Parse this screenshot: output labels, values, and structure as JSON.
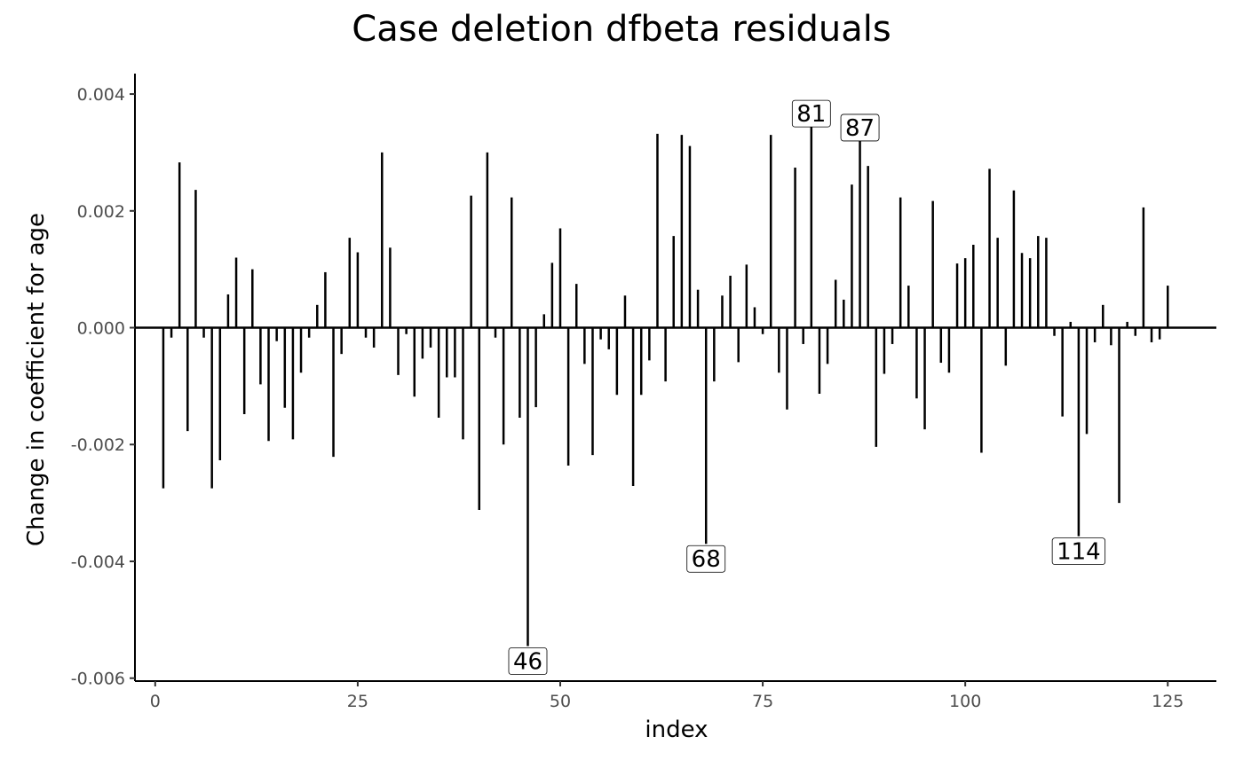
{
  "chart_data": {
    "type": "bar",
    "title": "Case deletion dfbeta residuals",
    "xlabel": "index",
    "ylabel": "Change in coefficient for age",
    "xlim": [
      -2.5,
      131
    ],
    "ylim": [
      -0.00605,
      0.00435
    ],
    "x_ticks": [
      0,
      25,
      50,
      75,
      100,
      125
    ],
    "y_ticks": [
      -0.006,
      -0.004,
      -0.002,
      0.0,
      0.002,
      0.004
    ],
    "x_tick_labels": [
      "0",
      "25",
      "50",
      "75",
      "100",
      "125"
    ],
    "y_tick_labels": [
      "-0.006",
      "-0.004",
      "-0.002",
      "0.000",
      "0.002",
      "0.004"
    ],
    "labeled_points": [
      {
        "index": 46,
        "label": "46"
      },
      {
        "index": 68,
        "label": "68"
      },
      {
        "index": 81,
        "label": "81"
      },
      {
        "index": 87,
        "label": "87"
      },
      {
        "index": 114,
        "label": "114"
      }
    ],
    "points": [
      {
        "x": 1,
        "y": -0.00275
      },
      {
        "x": 2,
        "y": -0.00017
      },
      {
        "x": 3,
        "y": 0.00283
      },
      {
        "x": 4,
        "y": -0.00177
      },
      {
        "x": 5,
        "y": 0.00236
      },
      {
        "x": 6,
        "y": -0.00017
      },
      {
        "x": 7,
        "y": -0.00275
      },
      {
        "x": 8,
        "y": -0.00227
      },
      {
        "x": 9,
        "y": 0.00057
      },
      {
        "x": 10,
        "y": 0.0012
      },
      {
        "x": 11,
        "y": -0.00148
      },
      {
        "x": 12,
        "y": 0.001
      },
      {
        "x": 13,
        "y": -0.00097
      },
      {
        "x": 14,
        "y": -0.00194
      },
      {
        "x": 15,
        "y": -0.00023
      },
      {
        "x": 16,
        "y": -0.00137
      },
      {
        "x": 17,
        "y": -0.00191
      },
      {
        "x": 18,
        "y": -0.00077
      },
      {
        "x": 19,
        "y": -0.00017
      },
      {
        "x": 20,
        "y": 0.00039
      },
      {
        "x": 21,
        "y": 0.00095
      },
      {
        "x": 22,
        "y": -0.00221
      },
      {
        "x": 23,
        "y": -0.00045
      },
      {
        "x": 24,
        "y": 0.00154
      },
      {
        "x": 25,
        "y": 0.00129
      },
      {
        "x": 26,
        "y": -0.00017
      },
      {
        "x": 27,
        "y": -0.00034
      },
      {
        "x": 28,
        "y": 0.003
      },
      {
        "x": 29,
        "y": 0.00137
      },
      {
        "x": 30,
        "y": -0.00081
      },
      {
        "x": 31,
        "y": -0.00011
      },
      {
        "x": 32,
        "y": -0.00118
      },
      {
        "x": 33,
        "y": -0.00053
      },
      {
        "x": 34,
        "y": -0.00034
      },
      {
        "x": 35,
        "y": -0.00154
      },
      {
        "x": 36,
        "y": -0.00085
      },
      {
        "x": 37,
        "y": -0.00085
      },
      {
        "x": 38,
        "y": -0.00191
      },
      {
        "x": 39,
        "y": 0.00226
      },
      {
        "x": 40,
        "y": -0.00312
      },
      {
        "x": 41,
        "y": 0.003
      },
      {
        "x": 42,
        "y": -0.00017
      },
      {
        "x": 43,
        "y": -0.002
      },
      {
        "x": 44,
        "y": 0.00223
      },
      {
        "x": 45,
        "y": -0.00154
      },
      {
        "x": 46,
        "y": -0.00545
      },
      {
        "x": 47,
        "y": -0.00136
      },
      {
        "x": 48,
        "y": 0.00023
      },
      {
        "x": 49,
        "y": 0.00111
      },
      {
        "x": 50,
        "y": 0.0017
      },
      {
        "x": 51,
        "y": -0.00236
      },
      {
        "x": 52,
        "y": 0.00075
      },
      {
        "x": 53,
        "y": -0.00062
      },
      {
        "x": 54,
        "y": -0.00218
      },
      {
        "x": 55,
        "y": -0.0002
      },
      {
        "x": 56,
        "y": -0.00037
      },
      {
        "x": 57,
        "y": -0.00115
      },
      {
        "x": 58,
        "y": 0.00055
      },
      {
        "x": 59,
        "y": -0.00271
      },
      {
        "x": 60,
        "y": -0.00115
      },
      {
        "x": 61,
        "y": -0.00056
      },
      {
        "x": 62,
        "y": 0.00332
      },
      {
        "x": 63,
        "y": -0.00092
      },
      {
        "x": 64,
        "y": 0.00157
      },
      {
        "x": 65,
        "y": 0.0033
      },
      {
        "x": 66,
        "y": 0.00311
      },
      {
        "x": 67,
        "y": 0.00065
      },
      {
        "x": 68,
        "y": -0.0037
      },
      {
        "x": 69,
        "y": -0.00092
      },
      {
        "x": 70,
        "y": 0.00055
      },
      {
        "x": 71,
        "y": 0.00089
      },
      {
        "x": 72,
        "y": -0.00059
      },
      {
        "x": 73,
        "y": 0.00108
      },
      {
        "x": 74,
        "y": 0.00035
      },
      {
        "x": 75,
        "y": -0.00011
      },
      {
        "x": 76,
        "y": 0.0033
      },
      {
        "x": 77,
        "y": -0.00077
      },
      {
        "x": 78,
        "y": -0.0014
      },
      {
        "x": 79,
        "y": 0.00274
      },
      {
        "x": 80,
        "y": -0.00028
      },
      {
        "x": 81,
        "y": 0.00365
      },
      {
        "x": 82,
        "y": -0.00113
      },
      {
        "x": 83,
        "y": -0.00062
      },
      {
        "x": 84,
        "y": 0.00082
      },
      {
        "x": 85,
        "y": 0.00048
      },
      {
        "x": 86,
        "y": 0.00245
      },
      {
        "x": 87,
        "y": 0.00341
      },
      {
        "x": 88,
        "y": 0.00277
      },
      {
        "x": 89,
        "y": -0.00204
      },
      {
        "x": 90,
        "y": -0.00079
      },
      {
        "x": 91,
        "y": -0.00028
      },
      {
        "x": 92,
        "y": 0.00223
      },
      {
        "x": 93,
        "y": 0.00072
      },
      {
        "x": 94,
        "y": -0.00121
      },
      {
        "x": 95,
        "y": -0.00174
      },
      {
        "x": 96,
        "y": 0.00217
      },
      {
        "x": 97,
        "y": -0.0006
      },
      {
        "x": 98,
        "y": -0.00077
      },
      {
        "x": 99,
        "y": 0.0011
      },
      {
        "x": 100,
        "y": 0.00119
      },
      {
        "x": 101,
        "y": 0.00142
      },
      {
        "x": 102,
        "y": -0.00214
      },
      {
        "x": 103,
        "y": 0.00272
      },
      {
        "x": 104,
        "y": 0.00154
      },
      {
        "x": 105,
        "y": -0.00065
      },
      {
        "x": 106,
        "y": 0.00235
      },
      {
        "x": 107,
        "y": 0.00128
      },
      {
        "x": 108,
        "y": 0.00119
      },
      {
        "x": 109,
        "y": 0.00157
      },
      {
        "x": 110,
        "y": 0.00154
      },
      {
        "x": 111,
        "y": -0.00014
      },
      {
        "x": 112,
        "y": -0.00152
      },
      {
        "x": 113,
        "y": 0.0001
      },
      {
        "x": 114,
        "y": -0.00357
      },
      {
        "x": 115,
        "y": -0.00182
      },
      {
        "x": 116,
        "y": -0.00025
      },
      {
        "x": 117,
        "y": 0.00039
      },
      {
        "x": 118,
        "y": -0.0003
      },
      {
        "x": 119,
        "y": -0.003
      },
      {
        "x": 120,
        "y": 0.0001
      },
      {
        "x": 121,
        "y": -0.00014
      },
      {
        "x": 122,
        "y": 0.00206
      },
      {
        "x": 123,
        "y": -0.00025
      },
      {
        "x": 124,
        "y": -0.0002
      },
      {
        "x": 125,
        "y": 0.00072
      }
    ]
  }
}
